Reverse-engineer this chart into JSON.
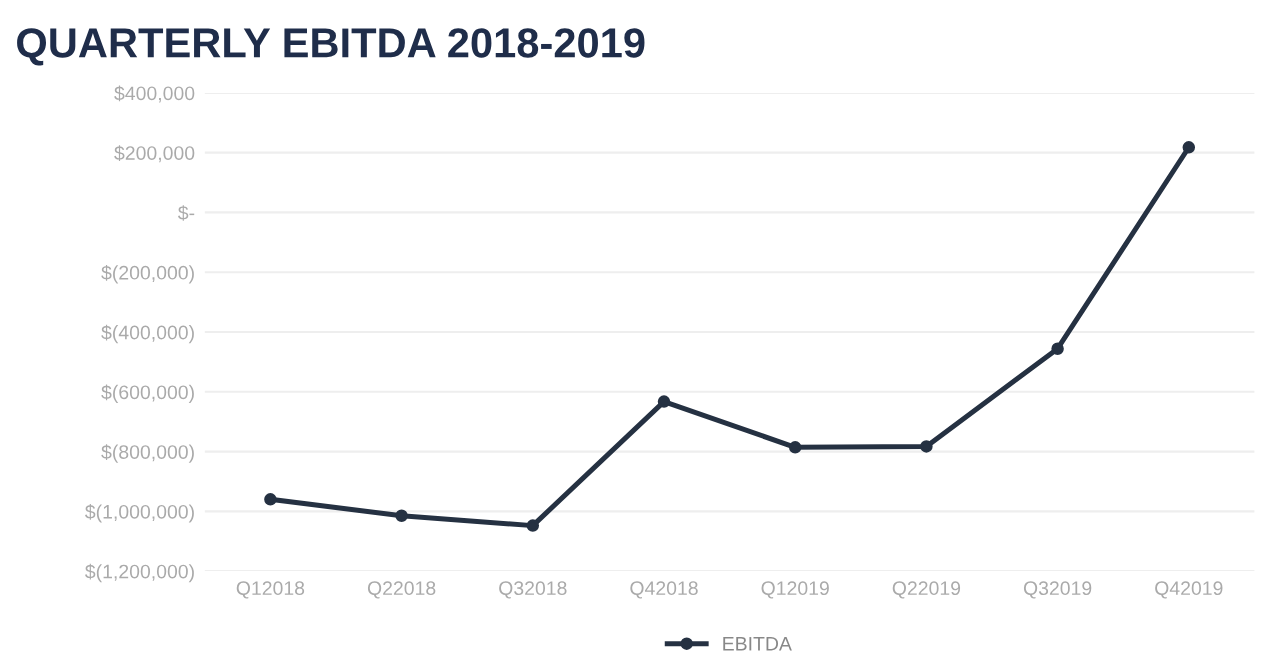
{
  "chart_data": {
    "type": "line",
    "title": "QUARTERLY EBITDA 2018-2019",
    "categories": [
      "Q12018",
      "Q22018",
      "Q32018",
      "Q42018",
      "Q12019",
      "Q22019",
      "Q32019",
      "Q42019"
    ],
    "series": [
      {
        "name": "EBITDA",
        "color": "#253142",
        "values": [
          -960000,
          -1015000,
          -1048000,
          -633000,
          -786000,
          -783000,
          -456000,
          218000
        ]
      }
    ],
    "ylim": [
      -1200000,
      400000
    ],
    "yticks": [
      {
        "value": -1200000,
        "label": "$(1,200,000)"
      },
      {
        "value": -1000000,
        "label": "$(1,000,000)"
      },
      {
        "value": -800000,
        "label": "$(800,000)"
      },
      {
        "value": -600000,
        "label": "$(600,000)"
      },
      {
        "value": -400000,
        "label": "$(400,000)"
      },
      {
        "value": -200000,
        "label": "$(200,000)"
      },
      {
        "value": 0,
        "label": "$-"
      },
      {
        "value": 200000,
        "label": "$200,000"
      },
      {
        "value": 400000,
        "label": "$400,000"
      }
    ],
    "grid": "y",
    "legend": "bottom",
    "marker": "circle",
    "line_style": "solid"
  }
}
